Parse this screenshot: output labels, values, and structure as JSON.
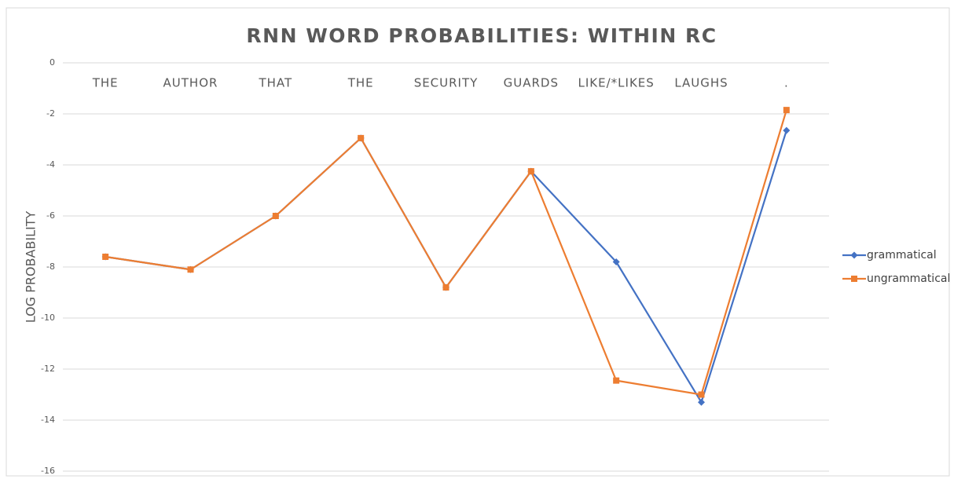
{
  "chart_data": {
    "type": "line",
    "title": "RNN WORD PROBABILITIES: WITHIN RC",
    "ylabel": "LOG PROBABILITY",
    "categories": [
      "THE",
      "AUTHOR",
      "THAT",
      "THE",
      "SECURITY",
      "GUARDS",
      "LIKE/*LIKES",
      "LAUGHS",
      "."
    ],
    "series": [
      {
        "name": "grammatical",
        "color": "#4472c4",
        "marker": "diamond",
        "values": [
          -7.6,
          -8.1,
          -6.0,
          -2.95,
          -8.8,
          -4.25,
          -7.8,
          -13.3,
          -2.65
        ]
      },
      {
        "name": "ungrammatical",
        "color": "#ed7d31",
        "marker": "square",
        "values": [
          -7.6,
          -8.1,
          -6.0,
          -2.95,
          -8.8,
          -4.25,
          -12.45,
          -13.0,
          -1.85
        ]
      }
    ],
    "ylim": [
      -16,
      0
    ],
    "yticks": [
      0,
      -2,
      -4,
      -6,
      -8,
      -10,
      -12,
      -14,
      -16
    ],
    "grid": true,
    "legend": "right"
  }
}
